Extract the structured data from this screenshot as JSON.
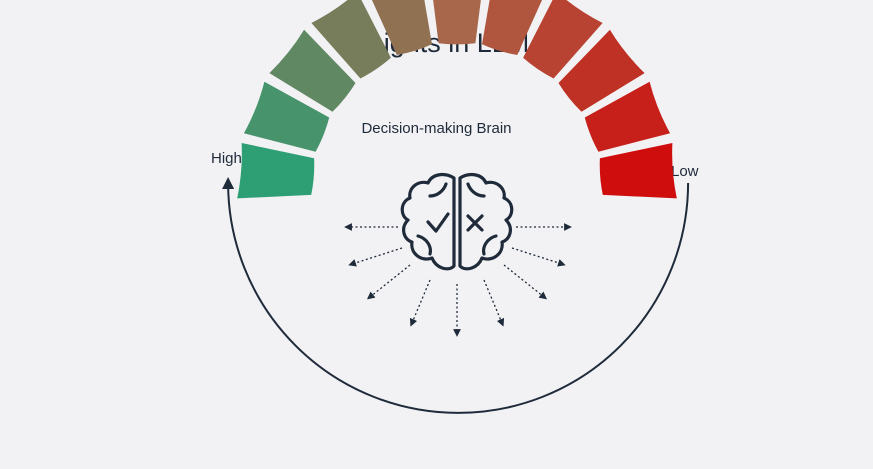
{
  "title": "Weights in LLM",
  "subtitle": "Decision-making Brain",
  "scale": {
    "high_label": "High",
    "low_label": "Low",
    "segment_count": 11,
    "start_color": "#2e9e74",
    "mid_color": "#a8674a",
    "end_color": "#cf0d0d"
  },
  "icons": {
    "center": "brain-icon",
    "check": "check-icon",
    "cross": "cross-icon"
  },
  "colors": {
    "text": "#1f2a3a",
    "icon": "#1f2a3a",
    "background": "#f2f2f4"
  }
}
